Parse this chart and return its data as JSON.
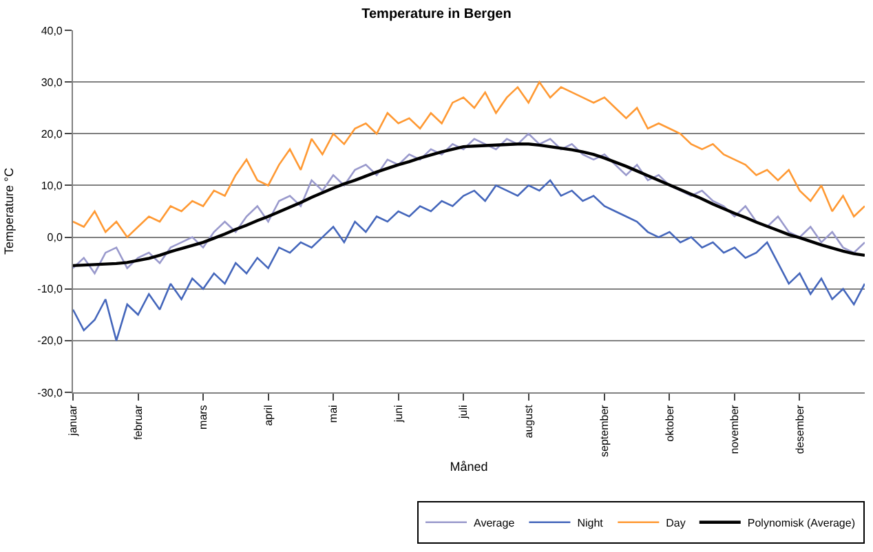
{
  "chart_data": {
    "type": "line",
    "title": "Temperature in Bergen",
    "xlabel": "Måned",
    "ylabel": "Temperature °C",
    "categories": [
      "januar",
      null,
      null,
      null,
      null,
      null,
      "februar",
      null,
      null,
      null,
      null,
      null,
      "mars",
      null,
      null,
      null,
      null,
      null,
      "april",
      null,
      null,
      null,
      null,
      null,
      "mai",
      null,
      null,
      null,
      null,
      null,
      "juni",
      null,
      null,
      null,
      null,
      null,
      "juli",
      null,
      null,
      null,
      null,
      null,
      "august",
      null,
      null,
      null,
      null,
      null,
      null,
      "september",
      null,
      null,
      null,
      null,
      null,
      "oktober",
      null,
      null,
      null,
      null,
      null,
      "november",
      null,
      null,
      null,
      null,
      null,
      "desember",
      null,
      null,
      null,
      null,
      null,
      null
    ],
    "series": [
      {
        "name": "Average",
        "color": "#9999cc",
        "values": [
          -6,
          -4,
          -7,
          -3,
          -2,
          -6,
          -4,
          -3,
          -5,
          -2,
          -1,
          0,
          -2,
          1,
          3,
          1,
          4,
          6,
          3,
          7,
          8,
          6,
          11,
          9,
          12,
          10,
          13,
          14,
          12,
          15,
          14,
          16,
          15,
          17,
          16,
          18,
          17,
          19,
          18,
          17,
          19,
          18,
          20,
          18,
          19,
          17,
          18,
          16,
          15,
          16,
          14,
          12,
          14,
          11,
          12,
          10,
          9,
          8,
          9,
          7,
          6,
          4,
          6,
          3,
          2,
          4,
          1,
          0,
          2,
          -1,
          1,
          -2,
          -3,
          -1
        ]
      },
      {
        "name": "Night",
        "color": "#4466bb",
        "values": [
          -14,
          -18,
          -16,
          -12,
          -20,
          -13,
          -15,
          -11,
          -14,
          -9,
          -12,
          -8,
          -10,
          -7,
          -9,
          -5,
          -7,
          -4,
          -6,
          -2,
          -3,
          -1,
          -2,
          0,
          2,
          -1,
          3,
          1,
          4,
          3,
          5,
          4,
          6,
          5,
          7,
          6,
          8,
          9,
          7,
          10,
          9,
          8,
          10,
          9,
          11,
          8,
          9,
          7,
          8,
          6,
          5,
          4,
          3,
          1,
          0,
          1,
          -1,
          0,
          -2,
          -1,
          -3,
          -2,
          -4,
          -3,
          -1,
          -5,
          -9,
          -7,
          -11,
          -8,
          -12,
          -10,
          -13,
          -9
        ]
      },
      {
        "name": "Day",
        "color": "#ff9933",
        "values": [
          3,
          2,
          5,
          1,
          3,
          0,
          2,
          4,
          3,
          6,
          5,
          7,
          6,
          9,
          8,
          12,
          15,
          11,
          10,
          14,
          17,
          13,
          19,
          16,
          20,
          18,
          21,
          22,
          20,
          24,
          22,
          23,
          21,
          24,
          22,
          26,
          27,
          25,
          28,
          24,
          27,
          29,
          26,
          30,
          27,
          29,
          28,
          27,
          26,
          27,
          25,
          23,
          25,
          21,
          22,
          21,
          20,
          18,
          17,
          18,
          16,
          15,
          14,
          12,
          13,
          11,
          13,
          9,
          7,
          10,
          5,
          8,
          4,
          6
        ]
      },
      {
        "name": "Polynomisk (Average)",
        "color": "#000000",
        "values": [
          -5.5,
          -5.4,
          -5.3,
          -5.2,
          -5.1,
          -4.9,
          -4.5,
          -4.1,
          -3.5,
          -2.8,
          -2.2,
          -1.6,
          -1,
          -0.2,
          0.6,
          1.5,
          2.3,
          3.2,
          4,
          4.9,
          5.8,
          6.7,
          7.7,
          8.6,
          9.5,
          10.3,
          11,
          11.8,
          12.6,
          13.3,
          14,
          14.6,
          15.3,
          15.9,
          16.5,
          17,
          17.5,
          17.6,
          17.7,
          17.8,
          17.9,
          18,
          18,
          17.8,
          17.5,
          17.2,
          16.9,
          16.5,
          16,
          15.3,
          14.5,
          13.7,
          12.8,
          11.9,
          11,
          10.1,
          9.2,
          8.3,
          7.4,
          6.4,
          5.5,
          4.6,
          3.8,
          2.9,
          2.1,
          1.3,
          0.5,
          -0.1,
          -0.8,
          -1.5,
          -2.1,
          -2.7,
          -3.2,
          -3.5
        ]
      }
    ],
    "ylim": [
      -30,
      40
    ],
    "yticks": [
      {
        "value": -30,
        "label": "-30,0"
      },
      {
        "value": -20,
        "label": "-20,0"
      },
      {
        "value": -10,
        "label": "-10,0"
      },
      {
        "value": 0,
        "label": "0,0"
      },
      {
        "value": 10,
        "label": "10,0"
      },
      {
        "value": 20,
        "label": "20,0"
      },
      {
        "value": 30,
        "label": "30,0"
      },
      {
        "value": 40,
        "label": "40,0"
      }
    ],
    "grid": "y",
    "legend": "bottom right",
    "marker": "none",
    "line_style": "solid"
  }
}
